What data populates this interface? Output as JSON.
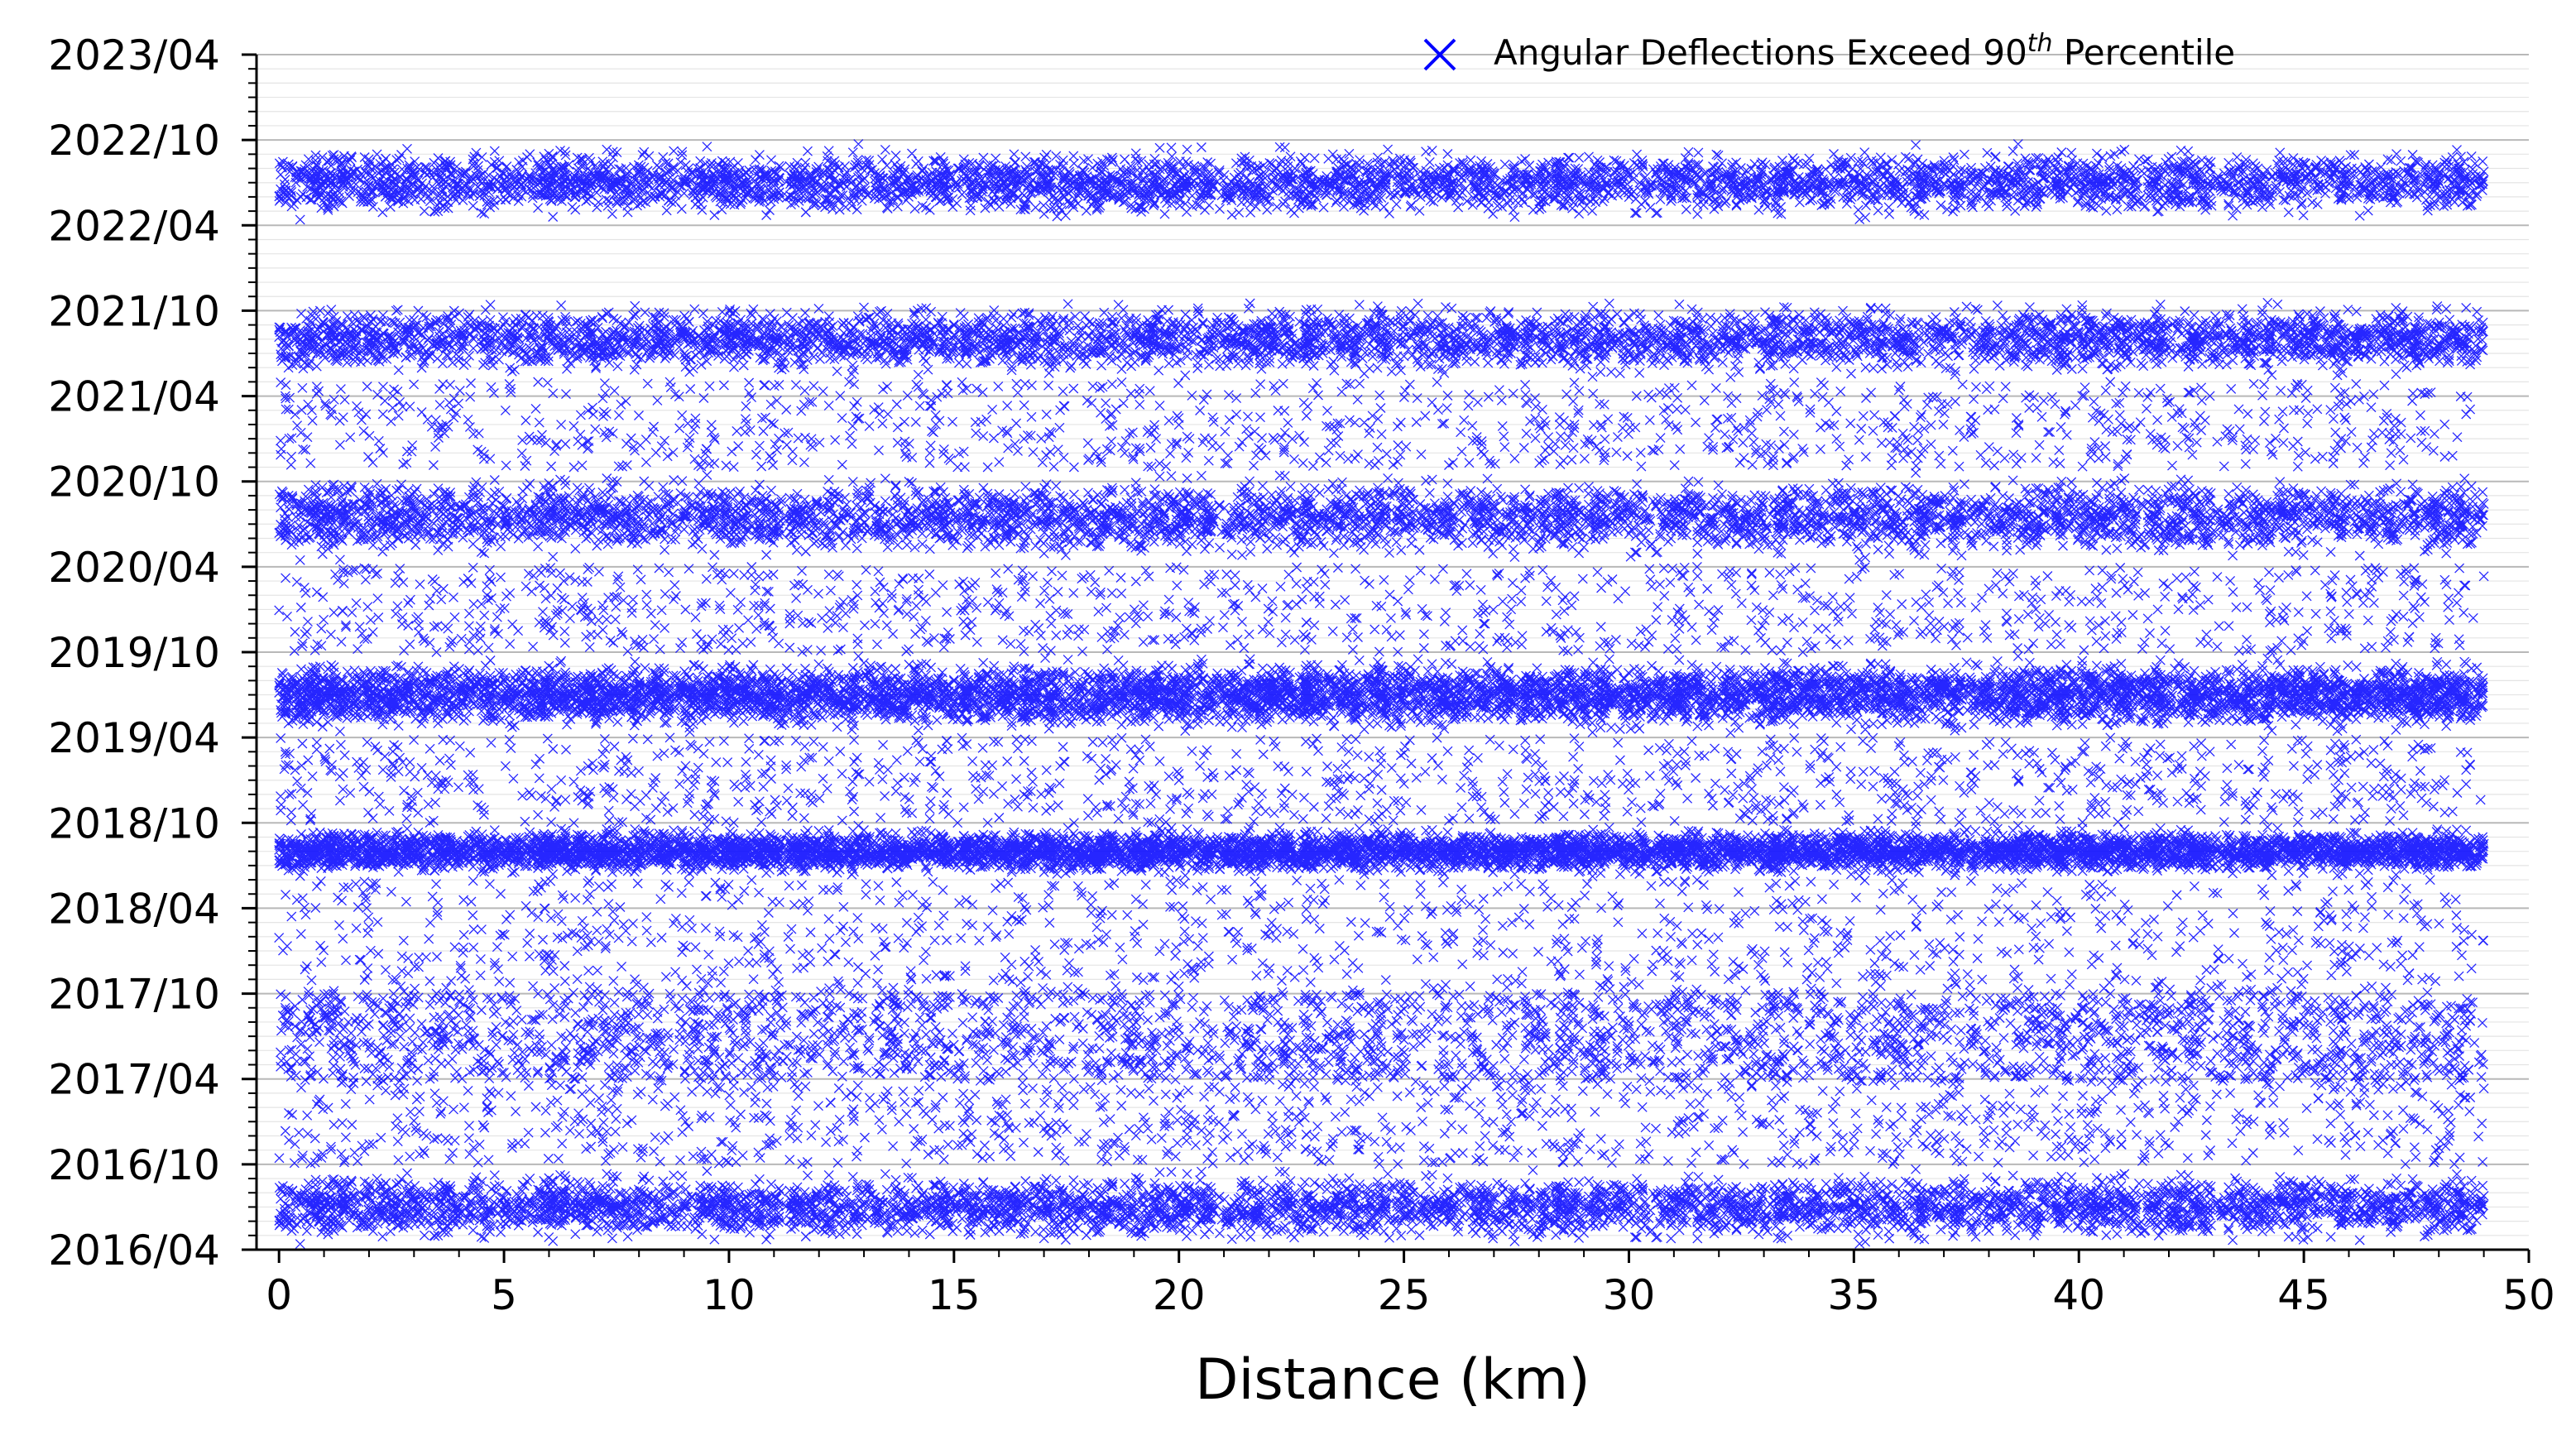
{
  "chart_data": {
    "type": "scatter",
    "title": "",
    "xlabel": "Distance (km)",
    "ylabel": "",
    "xlim": [
      -0.5,
      50
    ],
    "ylim": [
      "2016/04",
      "2023/04"
    ],
    "x_ticks": [
      "0",
      "5",
      "10",
      "15",
      "20",
      "25",
      "30",
      "35",
      "40",
      "45",
      "50"
    ],
    "y_ticks": [
      "2016/04",
      "2016/10",
      "2017/04",
      "2017/10",
      "2018/04",
      "2018/10",
      "2019/04",
      "2019/10",
      "2020/04",
      "2020/10",
      "2021/04",
      "2021/10",
      "2022/04",
      "2022/10",
      "2023/04"
    ],
    "grid": "horizontal monthly gridlines",
    "legend_position": "top-right",
    "marker": "x",
    "color": "#0000ff",
    "series": [
      {
        "name": "Angular Deflections Exceed 90th Percentile",
        "legend_label": {
          "main": "Angular Deflections Exceed 90",
          "superscript": "th",
          "suffix": " Percentile"
        },
        "distance_range_km": [
          0.0,
          49.0
        ],
        "date_range": [
          "2016/04",
          "2022/10"
        ],
        "gap_in_dates": [
          "2022/04",
          "2021/10"
        ],
        "density_profile": [
          {
            "from": "2016/04",
            "to": "2016/10",
            "density": "high"
          },
          {
            "from": "2016/10",
            "to": "2017/04",
            "density": "low"
          },
          {
            "from": "2017/04",
            "to": "2017/10",
            "density": "medium"
          },
          {
            "from": "2017/10",
            "to": "2018/06",
            "density": "low"
          },
          {
            "from": "2018/06",
            "to": "2018/10",
            "density": "very high"
          },
          {
            "from": "2018/10",
            "to": "2019/04",
            "density": "low"
          },
          {
            "from": "2019/04",
            "to": "2019/10",
            "density": "very high"
          },
          {
            "from": "2019/10",
            "to": "2020/04",
            "density": "low"
          },
          {
            "from": "2020/04",
            "to": "2020/11",
            "density": "high"
          },
          {
            "from": "2020/11",
            "to": "2021/05",
            "density": "low"
          },
          {
            "from": "2021/05",
            "to": "2021/11",
            "density": "high"
          },
          {
            "from": "2022/04",
            "to": "2022/10",
            "density": "high"
          }
        ]
      }
    ]
  }
}
